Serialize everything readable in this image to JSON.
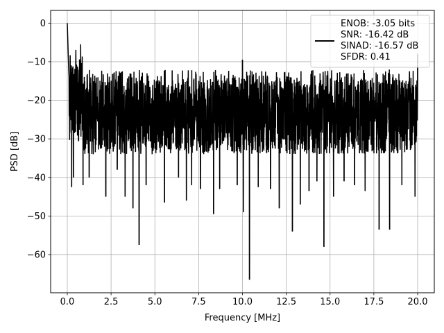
{
  "chart_data": {
    "type": "line",
    "xlabel": "Frequency [MHz]",
    "ylabel": "PSD [dB]",
    "xlim": [
      -0.95,
      20.95
    ],
    "ylim": [
      -69.9,
      3.3
    ],
    "xticks": [
      0.0,
      2.5,
      5.0,
      7.5,
      10.0,
      12.5,
      15.0,
      17.5,
      20.0
    ],
    "xtick_labels": [
      "0.0",
      "2.5",
      "5.0",
      "7.5",
      "10.0",
      "12.5",
      "15.0",
      "17.5",
      "20.0"
    ],
    "yticks": [
      0,
      -10,
      -20,
      -30,
      -40,
      -50,
      -60
    ],
    "ytick_labels": [
      "0",
      "−10",
      "−20",
      "−30",
      "−40",
      "−50",
      "−60"
    ],
    "grid": true,
    "legend_position": "top-right",
    "legend_lines": [
      "ENOB: -3.05 bits",
      "SNR: -16.42 dB",
      "SINAD: -16.57 dB",
      "SFDR: 0.41"
    ],
    "series": [
      {
        "color": "#000000",
        "x_range": [
          0.0,
          20.0
        ],
        "noise_band": {
          "upper_dB": -14,
          "lower_dB": -34,
          "median_dB": -25
        },
        "low_freq_peak": {
          "x": [
            0.0,
            0.02,
            0.04,
            0.06,
            0.08,
            0.1
          ],
          "y": [
            0,
            -3,
            -6,
            -9,
            -12,
            -14
          ]
        },
        "spurs": [
          {
            "x": 10.0,
            "y": -9.5
          },
          {
            "x": 20.0,
            "y": -8
          }
        ],
        "dips": [
          {
            "x": 0.25,
            "y": -42.5
          },
          {
            "x": 0.35,
            "y": -40
          },
          {
            "x": 0.9,
            "y": -42
          },
          {
            "x": 1.25,
            "y": -40
          },
          {
            "x": 2.2,
            "y": -45
          },
          {
            "x": 2.85,
            "y": -38
          },
          {
            "x": 3.3,
            "y": -45
          },
          {
            "x": 3.75,
            "y": -48
          },
          {
            "x": 4.1,
            "y": -57.5
          },
          {
            "x": 4.5,
            "y": -42
          },
          {
            "x": 5.55,
            "y": -46.5
          },
          {
            "x": 6.35,
            "y": -40
          },
          {
            "x": 6.8,
            "y": -46
          },
          {
            "x": 7.1,
            "y": -42
          },
          {
            "x": 7.6,
            "y": -43
          },
          {
            "x": 8.35,
            "y": -49.5
          },
          {
            "x": 8.7,
            "y": -43
          },
          {
            "x": 9.7,
            "y": -42
          },
          {
            "x": 10.05,
            "y": -49
          },
          {
            "x": 10.4,
            "y": -66.5
          },
          {
            "x": 10.9,
            "y": -42.5
          },
          {
            "x": 11.6,
            "y": -43
          },
          {
            "x": 12.1,
            "y": -48
          },
          {
            "x": 12.85,
            "y": -54
          },
          {
            "x": 13.3,
            "y": -47
          },
          {
            "x": 13.8,
            "y": -43.5
          },
          {
            "x": 14.25,
            "y": -41
          },
          {
            "x": 14.65,
            "y": -58
          },
          {
            "x": 15.2,
            "y": -45
          },
          {
            "x": 15.8,
            "y": -41
          },
          {
            "x": 16.4,
            "y": -42
          },
          {
            "x": 17.0,
            "y": -43.5
          },
          {
            "x": 17.8,
            "y": -53.5
          },
          {
            "x": 18.4,
            "y": -53.5
          },
          {
            "x": 19.1,
            "y": -42
          },
          {
            "x": 19.85,
            "y": -45
          }
        ]
      }
    ]
  }
}
